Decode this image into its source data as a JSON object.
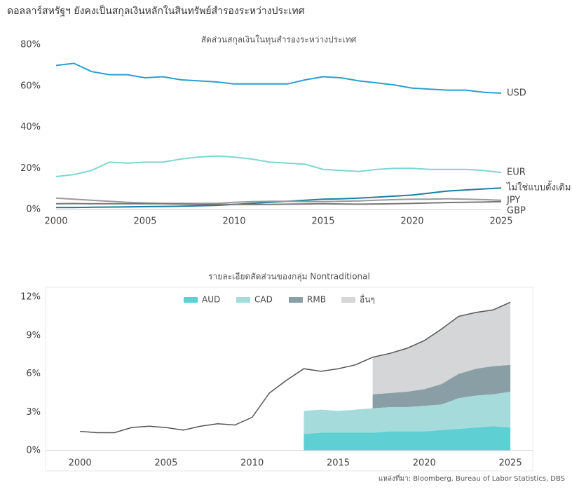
{
  "header": {
    "title": "ดอลลาร์สหรัฐฯ ยังคงเป็นสกุลเงินหลักในสินทรัพย์สำรองระหว่างประเทศ"
  },
  "chart_data": [
    {
      "type": "line",
      "title": "สัดส่วนสกุลเงินในทุนสำรองระหว่างประเทศ",
      "x": [
        2000,
        2001,
        2002,
        2003,
        2004,
        2005,
        2006,
        2007,
        2008,
        2009,
        2010,
        2011,
        2012,
        2013,
        2014,
        2015,
        2016,
        2017,
        2018,
        2019,
        2020,
        2021,
        2022,
        2023,
        2024,
        2025
      ],
      "xlim": [
        2000,
        2025
      ],
      "xticks": [
        2000,
        2005,
        2010,
        2015,
        2020,
        2025
      ],
      "ylim": [
        0,
        80
      ],
      "yticks": [
        {
          "value": 0,
          "label": "0%"
        },
        {
          "value": 20,
          "label": "20%"
        },
        {
          "value": 40,
          "label": "40%"
        },
        {
          "value": 60,
          "label": "60%"
        },
        {
          "value": 80,
          "label": "80%"
        }
      ],
      "series": [
        {
          "name": "USD",
          "color": "#2a9fd0",
          "values": [
            70,
            71,
            67,
            65.5,
            65.5,
            64,
            64.5,
            63,
            62.5,
            62,
            61,
            61,
            61,
            61,
            63,
            64.5,
            64,
            62.5,
            61.5,
            60.5,
            59,
            58.5,
            58,
            58,
            57,
            56.5
          ]
        },
        {
          "name": "EUR",
          "color": "#7fd6d0",
          "values": [
            16,
            17,
            19,
            23,
            22.5,
            23,
            23,
            24.5,
            25.5,
            26,
            25.5,
            24.5,
            23,
            22.5,
            22,
            19.5,
            19,
            18.5,
            19.5,
            20,
            20,
            19.5,
            19.5,
            19.5,
            19,
            18
          ]
        },
        {
          "name": "ไม่ใช่แบบดั้งเดิม",
          "color": "#1a7fa0",
          "values": [
            1,
            1,
            1.1,
            1.2,
            1.3,
            1.4,
            1.5,
            1.6,
            1.8,
            2,
            2.5,
            3,
            3.5,
            4,
            4.5,
            5,
            5.2,
            5.5,
            6,
            6.5,
            7,
            8,
            9,
            9.5,
            10,
            10.5
          ]
        },
        {
          "name": "JPY",
          "color": "#9a9a9a",
          "values": [
            5.5,
            5,
            4.5,
            4,
            3.5,
            3.2,
            3,
            3,
            3,
            3,
            3.5,
            3.8,
            4,
            4,
            3.8,
            3.8,
            4,
            4.2,
            4.5,
            4.8,
            5,
            5,
            5.2,
            5,
            4.8,
            4.5
          ]
        },
        {
          "name": "GBP",
          "color": "#777777",
          "values": [
            2.8,
            2.9,
            2.8,
            2.8,
            2.8,
            2.8,
            2.8,
            2.7,
            2.5,
            2.5,
            2.5,
            2.4,
            2.5,
            2.6,
            2.7,
            2.8,
            2.7,
            2.6,
            2.7,
            2.8,
            3,
            3.2,
            3.4,
            3.5,
            3.6,
            3.8
          ]
        }
      ]
    },
    {
      "type": "stacked_area",
      "title": "รายละเอียดสัดส่วนของกลุ่ม Nontraditional",
      "x": [
        2000,
        2001,
        2002,
        2003,
        2004,
        2005,
        2006,
        2007,
        2008,
        2009,
        2010,
        2011,
        2012,
        2013,
        2014,
        2015,
        2016,
        2017,
        2018,
        2019,
        2020,
        2021,
        2022,
        2023,
        2024,
        2025
      ],
      "xlim": [
        1998,
        2026.3
      ],
      "xticks": [
        2000,
        2005,
        2010,
        2015,
        2020,
        2025
      ],
      "ylim": [
        0,
        12
      ],
      "yticks": [
        {
          "value": 0,
          "label": "0%"
        },
        {
          "value": 3,
          "label": "3%"
        },
        {
          "value": 6,
          "label": "6%"
        },
        {
          "value": 9,
          "label": "9%"
        },
        {
          "value": 12,
          "label": "12%"
        }
      ],
      "series": [
        {
          "name": "AUD",
          "color": "#5ecfd3",
          "values": [
            null,
            null,
            null,
            null,
            null,
            null,
            null,
            null,
            null,
            null,
            null,
            null,
            null,
            1.3,
            1.4,
            1.4,
            1.4,
            1.4,
            1.5,
            1.5,
            1.5,
            1.6,
            1.7,
            1.8,
            1.9,
            1.8
          ]
        },
        {
          "name": "CAD",
          "color": "#a5dcdb",
          "values": [
            null,
            null,
            null,
            null,
            null,
            null,
            null,
            null,
            null,
            null,
            null,
            null,
            null,
            1.8,
            1.8,
            1.7,
            1.8,
            1.9,
            1.9,
            1.9,
            2.0,
            2.0,
            2.4,
            2.5,
            2.5,
            2.8
          ]
        },
        {
          "name": "RMB",
          "color": "#8a9ea6",
          "values": [
            null,
            null,
            null,
            null,
            null,
            null,
            null,
            null,
            null,
            null,
            null,
            null,
            null,
            null,
            null,
            null,
            null,
            1.1,
            1.1,
            1.2,
            1.3,
            1.6,
            1.9,
            2.1,
            2.2,
            2.1
          ]
        },
        {
          "name": "อื่นๆ",
          "color": "#d4d6d8",
          "values": [
            null,
            null,
            null,
            null,
            null,
            null,
            null,
            null,
            null,
            null,
            null,
            null,
            null,
            null,
            null,
            null,
            null,
            2.9,
            3.1,
            3.4,
            3.8,
            4.3,
            4.5,
            4.4,
            4.4,
            4.9
          ]
        },
        {
          "type": "line",
          "color": "#555555",
          "values": [
            1.5,
            1.4,
            1.4,
            1.8,
            1.9,
            1.8,
            1.6,
            1.9,
            2.1,
            2.0,
            2.6,
            4.5,
            5.5,
            6.4,
            6.2,
            6.4,
            6.7,
            7.3,
            7.6,
            8.0,
            8.6,
            9.5,
            10.5,
            10.8,
            11.0,
            11.6
          ]
        }
      ]
    }
  ],
  "source": "แหล่งที่มา: Bloomberg, Bureau of Labor Statistics, DBS"
}
